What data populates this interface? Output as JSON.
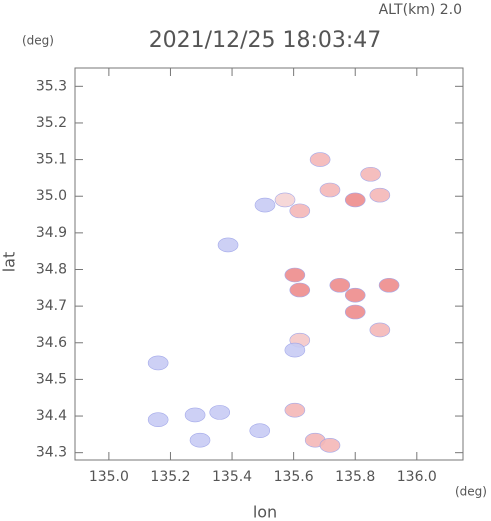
{
  "chart_data": {
    "type": "scatter",
    "title": "2021/12/25 18:03:47",
    "subtitle": "ALT(km) 2.0",
    "x_label": "lon",
    "y_label": "lat",
    "x_unit": "(deg)",
    "y_unit": "(deg)",
    "xlim": [
      134.89,
      136.15
    ],
    "ylim": [
      34.28,
      35.35
    ],
    "xticks": [
      {
        "value": 135.0,
        "label": "135.0"
      },
      135.2,
      135.4,
      135.6,
      135.8,
      {
        "value": 136.0,
        "label": "136.0"
      }
    ],
    "yticks": [
      {
        "value": 34.3,
        "label": "34.3"
      },
      34.4,
      34.5,
      34.6,
      34.7,
      34.8,
      34.9,
      {
        "value": 35.0,
        "label": "35.0"
      },
      35.1,
      35.2,
      35.3
    ],
    "x": [
      135.507,
      135.572,
      135.62,
      135.686,
      135.718,
      135.8,
      135.85,
      135.88,
      135.387,
      135.604,
      135.62,
      135.75,
      135.8,
      135.62,
      135.604,
      135.16,
      135.16,
      135.28,
      135.36,
      135.49,
      135.604,
      135.67,
      135.718,
      135.296,
      135.91,
      135.88,
      135.8
    ],
    "y": [
      34.976,
      34.99,
      34.96,
      35.1,
      35.017,
      34.99,
      35.06,
      35.003,
      34.867,
      34.785,
      34.744,
      34.757,
      34.73,
      34.607,
      34.58,
      34.545,
      34.39,
      34.403,
      34.41,
      34.36,
      34.416,
      34.334,
      34.32,
      34.334,
      34.757,
      34.635,
      34.684
    ],
    "colors": [
      "#c8ccf4",
      "#f6d4d4",
      "#f4b8b8",
      "#f4b8b8",
      "#f4b8b8",
      "#ee8c8c",
      "#f4b8b8",
      "#f4b8b8",
      "#c8ccf4",
      "#ee8c8c",
      "#ee8c8c",
      "#ee8c8c",
      "#ee8c8c",
      "#f4c8c8",
      "#c8ccf4",
      "#c8ccf4",
      "#c8ccf4",
      "#c8ccf4",
      "#c8ccf4",
      "#c8ccf4",
      "#f4b8b8",
      "#f4b8b8",
      "#f4b8b8",
      "#c8ccf4",
      "#ee8c8c",
      "#f4b8b8",
      "#ee8c8c"
    ]
  }
}
